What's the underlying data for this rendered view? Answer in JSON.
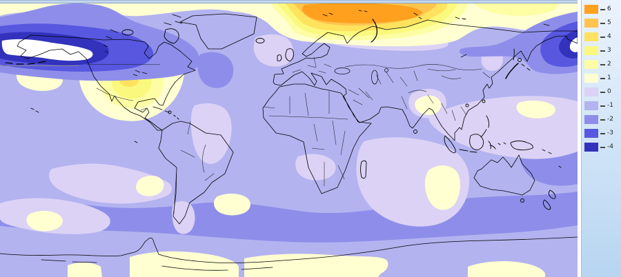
{
  "legend": {
    "entries": [
      {
        "label": "6",
        "color": "#ffa01e"
      },
      {
        "label": "5",
        "color": "#ffc44e"
      },
      {
        "label": "4",
        "color": "#ffe25e"
      },
      {
        "label": "3",
        "color": "#fbf97d"
      },
      {
        "label": "2",
        "color": "#fdfda4"
      },
      {
        "label": "1",
        "color": "#ffffd2"
      },
      {
        "label": "0",
        "color": "#dbd2f5"
      },
      {
        "label": "-1",
        "color": "#b3b3f0"
      },
      {
        "label": "-2",
        "color": "#8e8eea"
      },
      {
        "label": "-3",
        "color": "#5757e0"
      },
      {
        "label": "-4",
        "color": "#3232bc"
      }
    ],
    "tick_color": "#444444",
    "label_color": "#222222"
  },
  "map": {
    "kind": "filled-contour world anomaly map",
    "base_level": "-1",
    "below_min_color": "#ffffff",
    "coastline_color": "#000000",
    "border_color": "#1a1a1a",
    "latline_color": "#8a8a8a",
    "anomalies": [
      {
        "name": "arctic-russia-warm-center",
        "peak_level": "6"
      },
      {
        "name": "bering-alaska-cold-center",
        "peak_level": "below -4"
      },
      {
        "name": "central-north-america-warm",
        "peak_level": "4"
      },
      {
        "name": "east-siberia-cold",
        "peak_level": "below -4"
      },
      {
        "name": "southern-ocean-cool-band",
        "peak_level": "-2"
      }
    ]
  }
}
